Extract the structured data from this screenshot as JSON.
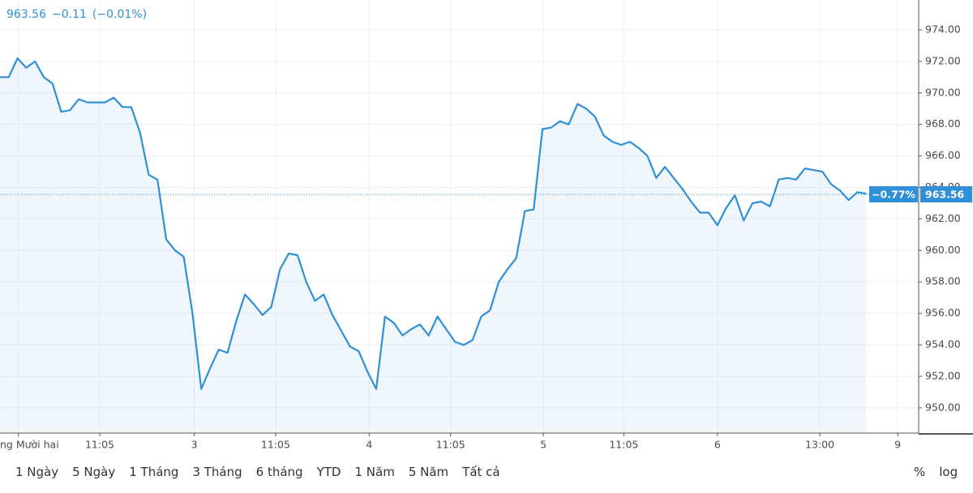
{
  "chart_data": {
    "type": "line",
    "header": {
      "price": "963.56",
      "change": "−0.11",
      "change_pct": "(−0.01%)"
    },
    "values": [
      971.0,
      971.0,
      972.2,
      971.6,
      972.0,
      971.0,
      970.6,
      968.8,
      968.9,
      969.6,
      969.4,
      969.4,
      969.4,
      969.7,
      969.1,
      969.1,
      967.5,
      964.8,
      964.5,
      960.7,
      960.0,
      959.6,
      956.0,
      951.2,
      952.5,
      953.7,
      953.5,
      955.5,
      957.2,
      956.6,
      955.9,
      956.4,
      958.8,
      959.8,
      959.7,
      958.0,
      956.8,
      957.2,
      955.9,
      954.9,
      953.9,
      953.6,
      952.3,
      951.2,
      955.8,
      955.4,
      954.6,
      955.0,
      955.3,
      954.6,
      955.8,
      955.0,
      954.2,
      954.0,
      954.3,
      955.8,
      956.2,
      958.0,
      958.8,
      959.5,
      962.5,
      962.6,
      967.7,
      967.8,
      968.2,
      968.0,
      969.3,
      969.0,
      968.5,
      967.3,
      966.9,
      966.7,
      966.9,
      966.5,
      966.0,
      964.6,
      965.3,
      964.6,
      963.9,
      963.1,
      962.4,
      962.4,
      961.6,
      962.7,
      963.5,
      961.9,
      963.0,
      963.1,
      962.8,
      964.5,
      964.6,
      964.5,
      965.2,
      965.1,
      965.0,
      964.2,
      963.8,
      963.2,
      963.7,
      963.6
    ],
    "color": "#2f8fd8",
    "last_value": 963.56,
    "last_change_label": "−0.77%",
    "xlim": [
      0,
      105
    ],
    "xticks": [
      {
        "value": 2.1,
        "label": "ng Mười hai"
      },
      {
        "value": 11.4,
        "label": "11:05"
      },
      {
        "value": 22.2,
        "label": "3"
      },
      {
        "value": 31.5,
        "label": "11:05"
      },
      {
        "value": 42.2,
        "label": "4"
      },
      {
        "value": 51.5,
        "label": "11:05"
      },
      {
        "value": 62.1,
        "label": "5"
      },
      {
        "value": 71.3,
        "label": "11:05"
      },
      {
        "value": 82,
        "label": "6"
      },
      {
        "value": 93.7,
        "label": "13:00"
      },
      {
        "value": 102.6,
        "label": "9"
      }
    ],
    "ylim": [
      948.4,
      975.9
    ],
    "yticks": [
      {
        "value": 950,
        "label": "950.00"
      },
      {
        "value": 952,
        "label": "952.00"
      },
      {
        "value": 954,
        "label": "954.00"
      },
      {
        "value": 956,
        "label": "956.00"
      },
      {
        "value": 958,
        "label": "958.00"
      },
      {
        "value": 960,
        "label": "960.00"
      },
      {
        "value": 962,
        "label": "962.00"
      },
      {
        "value": 964,
        "label": "964.00"
      },
      {
        "value": 966,
        "label": "966.00"
      },
      {
        "value": 968,
        "label": "968.00"
      },
      {
        "value": 970,
        "label": "970.00"
      },
      {
        "value": 972,
        "label": "972.00"
      },
      {
        "value": 974,
        "label": "974.00"
      }
    ],
    "grid": true,
    "toolbar": {
      "ranges": [
        "1 Ngày",
        "5 Ngày",
        "1 Tháng",
        "3 Tháng",
        "6 tháng",
        "YTD",
        "1 Năm",
        "5 Năm",
        "Tất cả"
      ],
      "percent": "%",
      "log": "log"
    }
  }
}
